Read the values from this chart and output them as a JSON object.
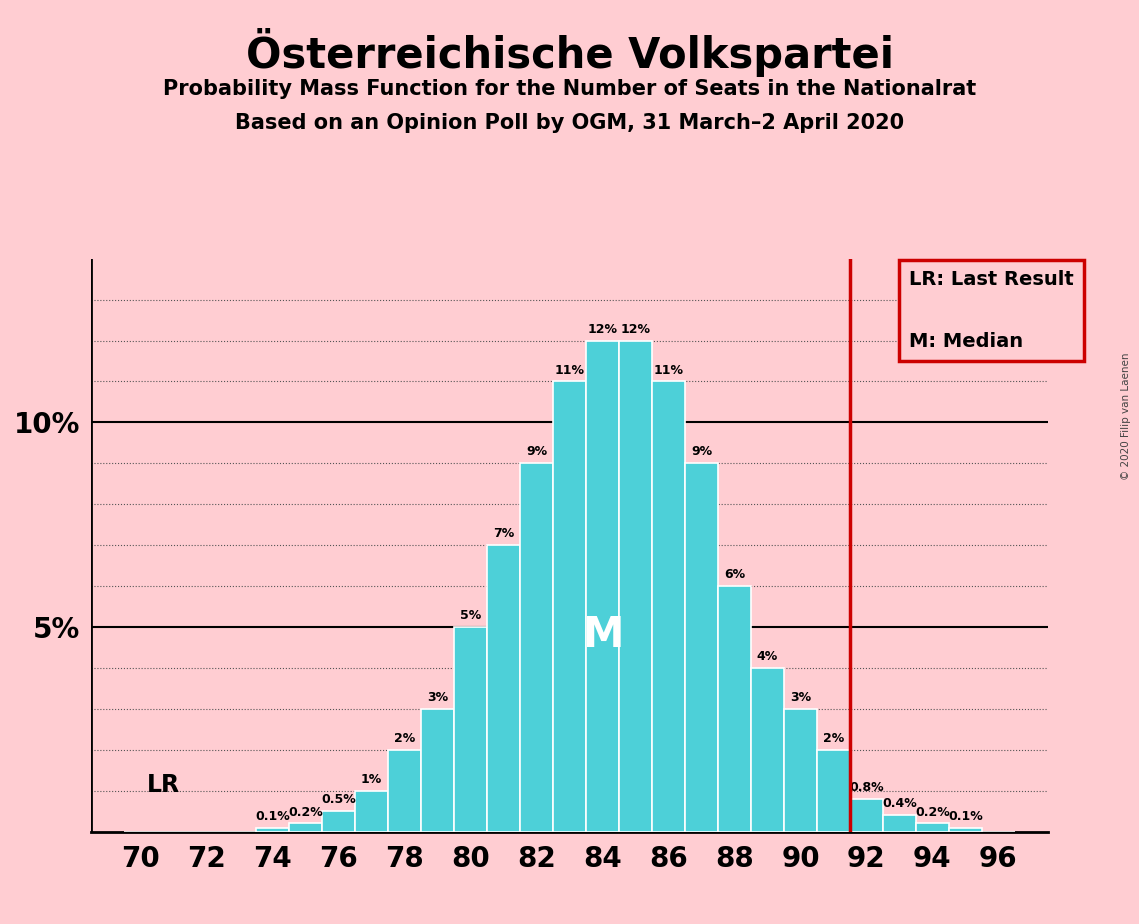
{
  "title": "Österreichische Volkspartei",
  "subtitle1": "Probability Mass Function for the Number of Seats in the Nationalrat",
  "subtitle2": "Based on an Opinion Poll by OGM, 31 March–2 April 2020",
  "copyright": "© 2020 Filip van Laenen",
  "background_color": "#FFCDD2",
  "bar_color": "#4DD0D8",
  "bar_edge_color": "#FFFFFF",
  "vline_color": "#CC0000",
  "text_color": "#000000",
  "median_label_color": "#FFFFFF",
  "seats": [
    70,
    71,
    72,
    73,
    74,
    75,
    76,
    77,
    78,
    79,
    80,
    81,
    82,
    83,
    84,
    85,
    86,
    87,
    88,
    89,
    90,
    91,
    92,
    93,
    94,
    95,
    96
  ],
  "probabilities": [
    0.0,
    0.0,
    0.0,
    0.0,
    0.1,
    0.2,
    0.5,
    1.0,
    2.0,
    3.0,
    5.0,
    7.0,
    9.0,
    11.0,
    12.0,
    12.0,
    11.0,
    9.0,
    6.0,
    4.0,
    3.0,
    2.0,
    0.8,
    0.4,
    0.2,
    0.1,
    0.0
  ],
  "last_result_seat": 91.5,
  "median_seat": 84,
  "ylim_max": 14.0,
  "ytick_positions_shown": [
    5,
    10
  ],
  "ytick_labels_shown": [
    "5%",
    "10%"
  ],
  "grid_yticks": [
    1,
    2,
    3,
    4,
    5,
    6,
    7,
    8,
    9,
    10,
    11,
    12,
    13
  ],
  "solid_yticks": [
    5,
    10
  ],
  "lr_label": "LR",
  "legend_lines": [
    "LR: Last Result",
    "M: Median"
  ]
}
